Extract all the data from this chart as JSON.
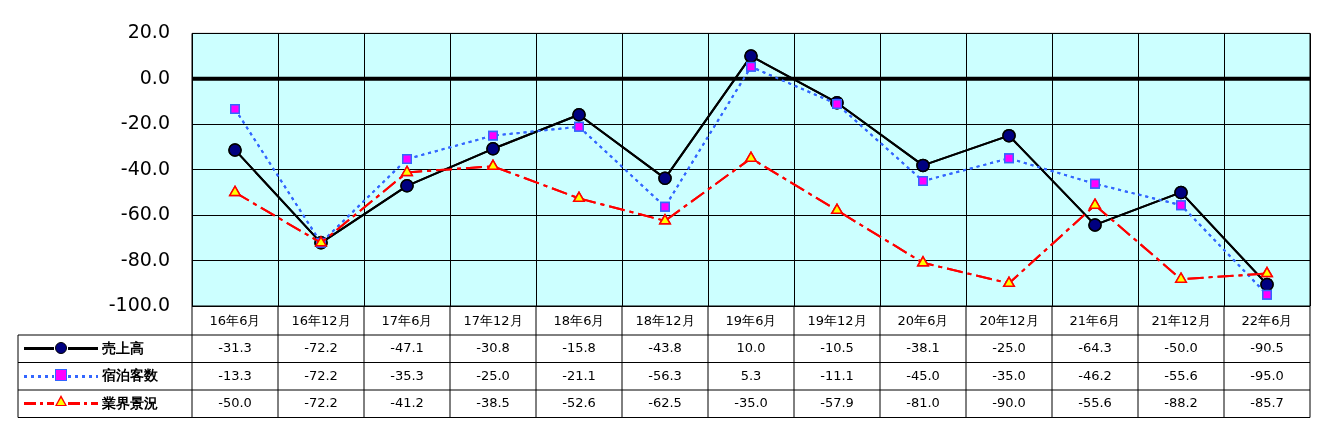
{
  "chart_data": {
    "type": "line",
    "categories": [
      "16年6月",
      "16年12月",
      "17年6月",
      "17年12月",
      "18年6月",
      "18年12月",
      "19年6月",
      "19年12月",
      "20年6月",
      "20年12月",
      "21年6月",
      "21年12月",
      "22年6月"
    ],
    "series": [
      {
        "name": "売上高",
        "color": "#000000",
        "marker": "circle",
        "line_style": "solid",
        "values": [
          -31.3,
          -72.2,
          -47.1,
          -30.8,
          -15.8,
          -43.8,
          10.0,
          -10.5,
          -38.1,
          -25.0,
          -64.3,
          -50.0,
          -90.5
        ],
        "value_labels": [
          "-31.3",
          "-72.2",
          "-47.1",
          "-30.8",
          "-15.8",
          "-43.8",
          "10.0",
          "-10.5",
          "-38.1",
          "-25.0",
          "-64.3",
          "-50.0",
          "-90.5"
        ]
      },
      {
        "name": "宿泊客数",
        "color": "#3366ff",
        "marker": "square",
        "line_style": "dotted",
        "values": [
          -13.3,
          -72.2,
          -35.3,
          -25.0,
          -21.1,
          -56.3,
          5.3,
          -11.1,
          -45.0,
          -35.0,
          -46.2,
          -55.6,
          -95.0
        ],
        "value_labels": [
          "-13.3",
          "-72.2",
          "-35.3",
          "-25.0",
          "-21.1",
          "-56.3",
          "5.3",
          "-11.1",
          "-45.0",
          "-35.0",
          "-46.2",
          "-55.6",
          "-95.0"
        ]
      },
      {
        "name": "業界景況",
        "color": "#ff0000",
        "marker": "triangle",
        "line_style": "dashed",
        "values": [
          -50.0,
          -72.2,
          -41.2,
          -38.5,
          -52.6,
          -62.5,
          -35.0,
          -57.9,
          -81.0,
          -90.0,
          -55.6,
          -88.2,
          -85.7
        ],
        "value_labels": [
          "-50.0",
          "-72.2",
          "-41.2",
          "-38.5",
          "-52.6",
          "-62.5",
          "-35.0",
          "-57.9",
          "-81.0",
          "-90.0",
          "-55.6",
          "-88.2",
          "-85.7"
        ]
      }
    ],
    "ylim": [
      -100,
      20
    ],
    "yticks": [
      {
        "value": -100,
        "label": "-100.0"
      },
      {
        "value": -80,
        "label": "-80.0"
      },
      {
        "value": -60,
        "label": "-60.0"
      },
      {
        "value": -40,
        "label": "-40.0"
      },
      {
        "value": -20,
        "label": "-20.0"
      },
      {
        "value": 0,
        "label": "0.0"
      },
      {
        "value": 20,
        "label": "20.0"
      }
    ],
    "ref_lines": [
      {
        "axis": "y",
        "value": 0,
        "color": "#000000"
      }
    ],
    "grid": true,
    "legend": "bottom left"
  }
}
